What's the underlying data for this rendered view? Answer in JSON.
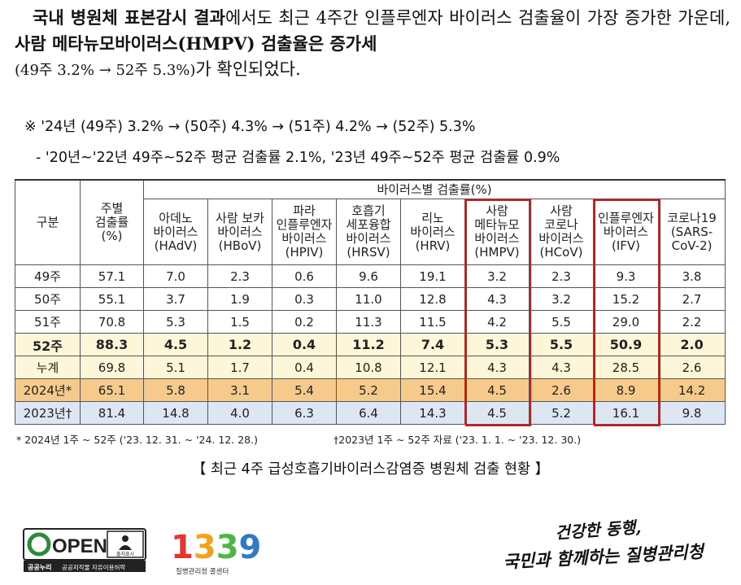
{
  "paragraph": {
    "p1_a": "국내 병원체 표본감시 결과",
    "p1_b": "에서도 최근 4주간 인플루엔자 바이러스 검출율이 가장 증가한 가운데, ",
    "p1_c": "사람 메타뉴모바이러스(HMPV) 검출율은 증가세",
    "p1_d": "(49주 3.2% → 52주 5.3%)",
    "p1_e": "가 확인되었다."
  },
  "notes": {
    "note1": "※ '24년 (49주) 3.2% → (50주) 4.3% → (51주) 4.2% → (52주) 5.3%",
    "note2": "- '20년~'22년 49주~52주 평균 검출률 2.1%, '23년 49주~52주 평균 검출률 0.9%"
  },
  "table": {
    "col_group_header": "바이러스별 검출률(%)",
    "col_category": "구분",
    "col_weekly": [
      "주별",
      "검출률",
      "(%)"
    ],
    "virus_headers": [
      [
        "아데노",
        "바이러스",
        "(HAdV)"
      ],
      [
        "사람 보카",
        "바이러스",
        "(HBoV)"
      ],
      [
        "파라",
        "인플루엔자",
        "바이러스",
        "(HPIV)"
      ],
      [
        "호흡기",
        "세포융합",
        "바이러스",
        "(HRSV)"
      ],
      [
        "리노",
        "바이러스",
        "(HRV)"
      ],
      [
        "사람",
        "메타뉴모",
        "바이러스",
        "(HMPV)"
      ],
      [
        "사람",
        "코로나",
        "바이러스",
        "(HCoV)"
      ],
      [
        "인플루엔자",
        "바이러스",
        "(IFV)"
      ],
      [
        "코로나19",
        "(SARS-",
        "CoV-2)"
      ]
    ],
    "rows": [
      {
        "label": "49주",
        "values": [
          "57.1",
          "7.0",
          "2.3",
          "0.6",
          "9.6",
          "19.1",
          "3.2",
          "2.3",
          "9.3",
          "3.8"
        ]
      },
      {
        "label": "50주",
        "values": [
          "55.1",
          "3.7",
          "1.9",
          "0.3",
          "11.0",
          "12.8",
          "4.3",
          "3.2",
          "15.2",
          "2.7"
        ]
      },
      {
        "label": "51주",
        "values": [
          "70.8",
          "5.3",
          "1.5",
          "0.2",
          "11.3",
          "11.5",
          "4.2",
          "5.5",
          "29.0",
          "2.2"
        ]
      },
      {
        "label": "52주",
        "values": [
          "88.3",
          "4.5",
          "1.2",
          "0.4",
          "11.2",
          "7.4",
          "5.3",
          "5.5",
          "50.9",
          "2.0"
        ]
      },
      {
        "label": "누계",
        "values": [
          "69.8",
          "5.1",
          "1.7",
          "0.4",
          "10.8",
          "12.1",
          "4.3",
          "4.3",
          "28.5",
          "2.6"
        ]
      },
      {
        "label": "2024년*",
        "values": [
          "65.1",
          "5.8",
          "3.1",
          "5.4",
          "5.2",
          "15.4",
          "4.5",
          "2.6",
          "8.9",
          "14.2"
        ]
      },
      {
        "label": "2023년†",
        "values": [
          "81.4",
          "14.8",
          "4.0",
          "6.3",
          "6.4",
          "14.3",
          "4.5",
          "5.2",
          "16.1",
          "9.8"
        ]
      }
    ],
    "row_classes": [
      "",
      "",
      "",
      "r52",
      "rcum",
      "r2024",
      "r2023"
    ],
    "highlight_color": "#e11111"
  },
  "footnotes": {
    "f1": "* 2024년 1주 ~ 52주 ('23. 12. 31. ~ '24. 12. 28.)",
    "f2": "†2023년 1주 ~ 52주 자료 ('23. 1. 1. ~ '23. 12. 30.)"
  },
  "caption": "【 최근 4주 급성호흡기바이러스감염증 병원체 검출 현황 】",
  "logos": {
    "open_text": "OPEN",
    "open_badge": "출처표시",
    "open_sub1": "공공누리",
    "open_sub2": "공공저작물 자유이용허락",
    "hotline": "1339",
    "hotline_sub": "질병관리청 콜센터",
    "slogan_line1": "건강한 동행,",
    "slogan_line2": "국민과 함께하는 질병관리청"
  }
}
